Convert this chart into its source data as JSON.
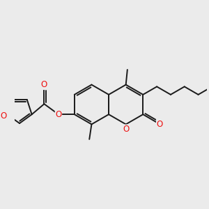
{
  "bg_color": "#ebebeb",
  "bond_color": "#1a1a1a",
  "heteroatom_color": "#ee1111",
  "line_width": 1.4,
  "figsize": [
    3.0,
    3.0
  ],
  "dpi": 100,
  "xlim": [
    -2.8,
    4.2
  ],
  "ylim": [
    -2.2,
    2.2
  ]
}
